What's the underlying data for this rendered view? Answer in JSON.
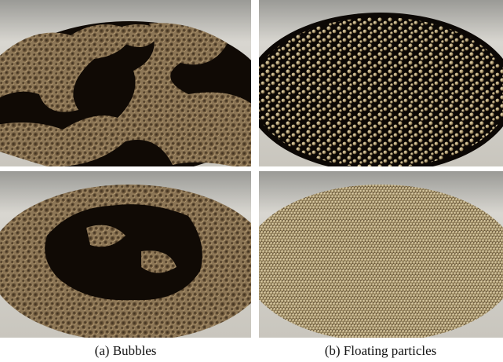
{
  "captions": [
    "(a) Bubbles",
    "(b) Floating particles"
  ]
}
